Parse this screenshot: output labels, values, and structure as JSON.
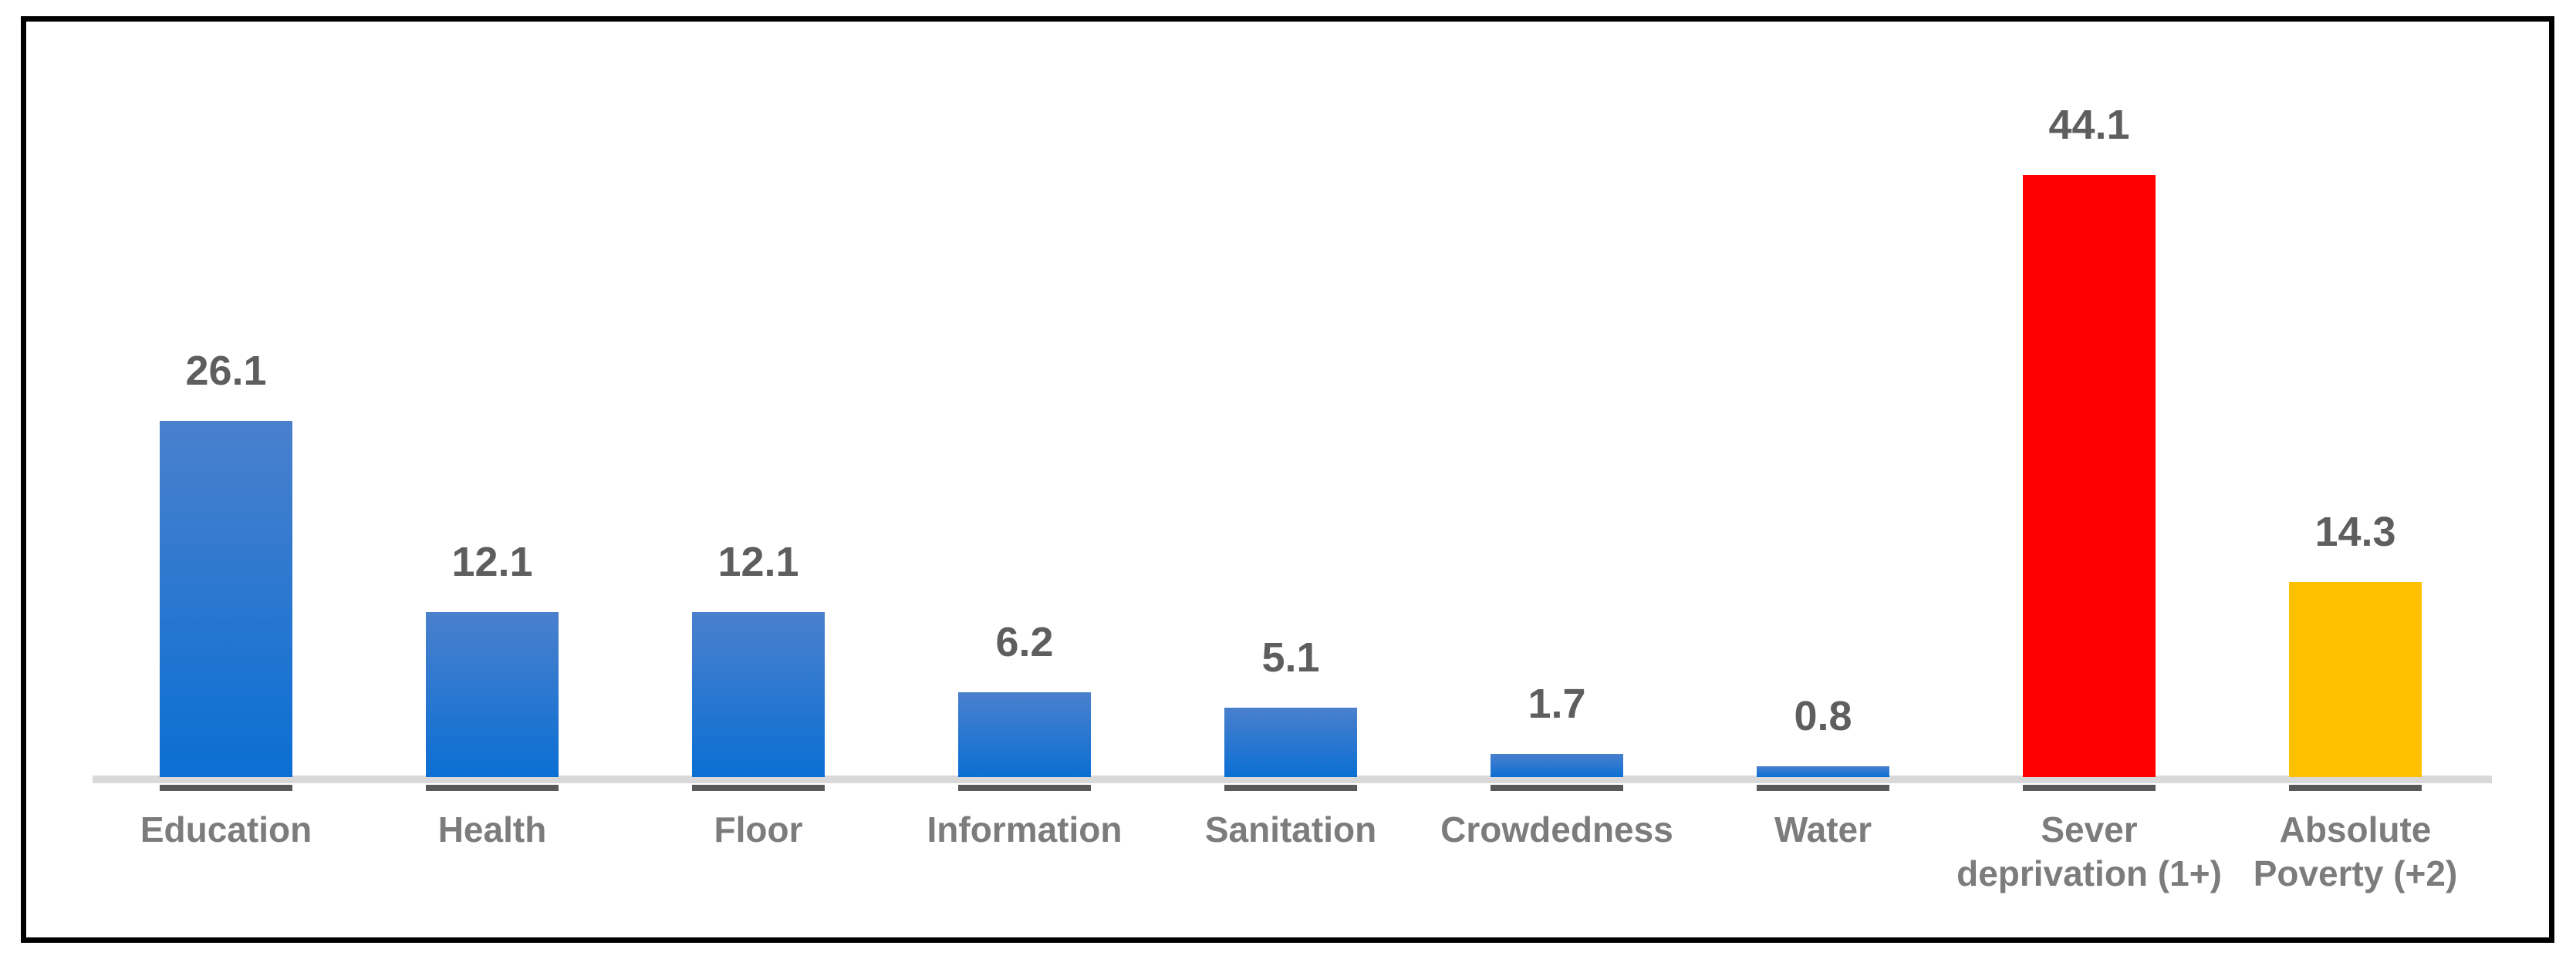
{
  "colors": {
    "background": "#FFFFFF",
    "frame_border": "#000000",
    "baseline": "#D9D9D9",
    "bar_shadow": "#595959",
    "value_label": "#5E5E5E",
    "category_label": "#7C7C7C",
    "blue_top": "#4A80CD",
    "blue_bottom": "#0B6FD3",
    "red": "#FE0000",
    "gold": "#FFC000"
  },
  "chart_data": {
    "type": "bar",
    "title": "",
    "xlabel": "",
    "ylabel": "",
    "ylim": [
      0,
      46.5
    ],
    "grid": false,
    "legend": false,
    "data_labels_shown": true,
    "categories": [
      "Education",
      "Health",
      "Floor",
      "Information",
      "Sanitation",
      "Crowdedness",
      "Water",
      "Sever deprivation (1+)",
      "Absolute Poverty (+2)"
    ],
    "category_lines": [
      [
        "Education"
      ],
      [
        "Health"
      ],
      [
        "Floor"
      ],
      [
        "Information"
      ],
      [
        "Sanitation"
      ],
      [
        "Crowdedness"
      ],
      [
        "Water"
      ],
      [
        "Sever",
        "deprivation (1+)"
      ],
      [
        "Absolute",
        "Poverty (+2)"
      ]
    ],
    "values": [
      26.1,
      12.1,
      12.1,
      6.2,
      5.1,
      1.7,
      0.8,
      44.1,
      14.3
    ],
    "data_labels": [
      "26.1",
      "12.1",
      "12.1",
      "6.2",
      "5.1",
      "1.7",
      "0.8",
      "44.1",
      "14.3"
    ],
    "bar_color_keys": [
      "blue",
      "blue",
      "blue",
      "blue",
      "blue",
      "blue",
      "blue",
      "red",
      "gold"
    ]
  }
}
